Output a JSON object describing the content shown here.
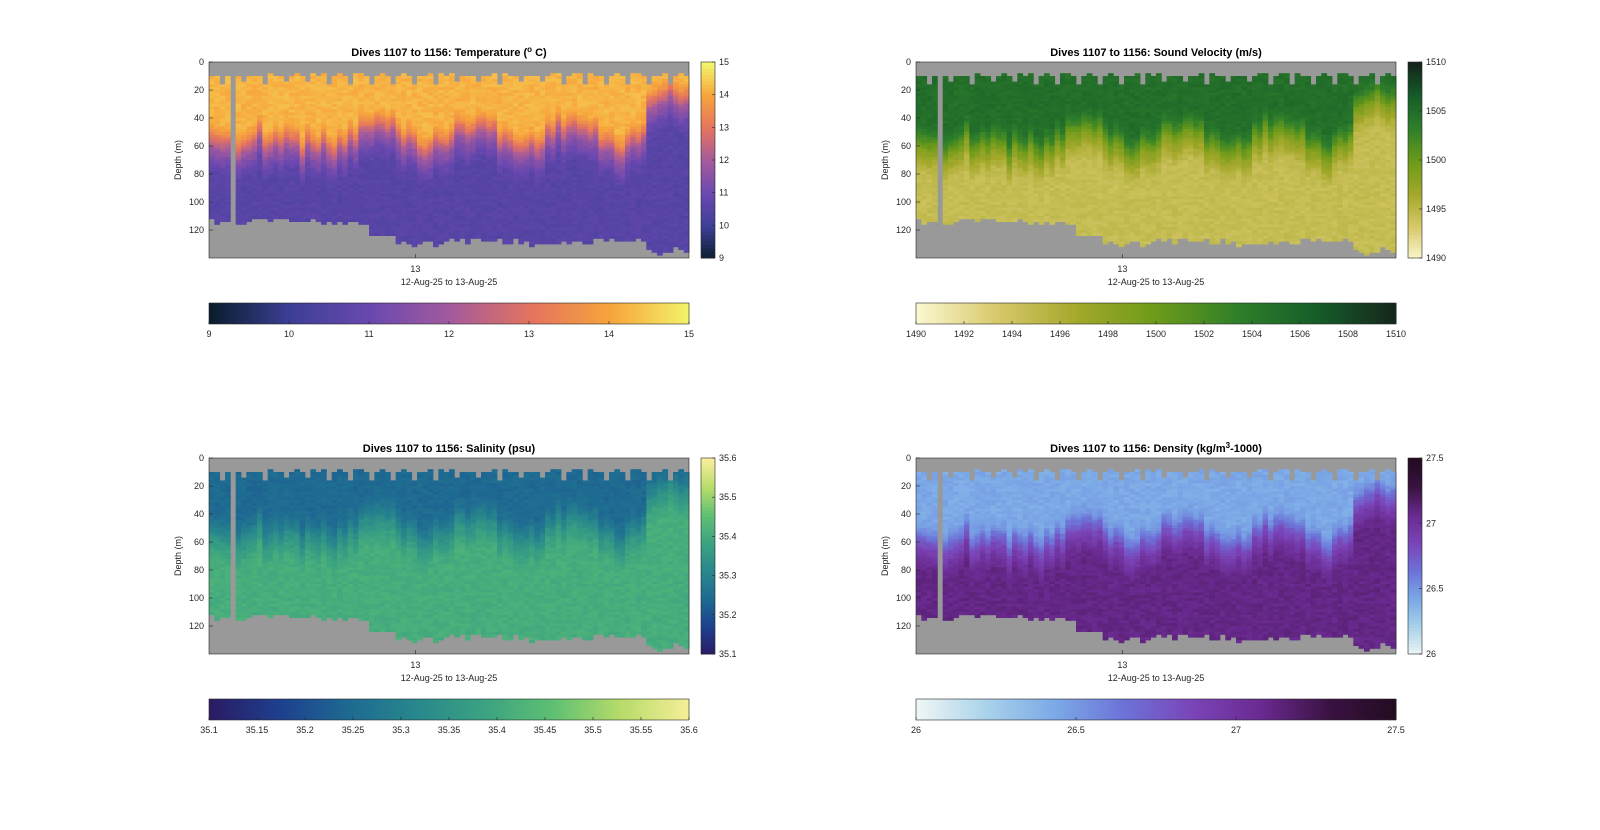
{
  "figure": {
    "background": "#ffffff",
    "missing_color": "#999999"
  },
  "chart_data": [
    {
      "type": "heatmap",
      "title": "Dives 1107 to 1156: Temperature (",
      "title_sup": "o",
      "title_tail": " C)",
      "xlabel": "12-Aug-25 to 13-Aug-25",
      "xtick_labels": [
        "13"
      ],
      "ylabel": "Depth (m)",
      "ylim": [
        0,
        140
      ],
      "yticks": [
        "0",
        "20",
        "40",
        "60",
        "80",
        "100",
        "120"
      ],
      "colorbar_range": [
        9,
        15
      ],
      "colorbar_ticks_side": [
        "9",
        "10",
        "11",
        "12",
        "13",
        "14",
        "15"
      ],
      "colorbar_ticks_bottom": [
        "9",
        "10",
        "11",
        "12",
        "13",
        "14",
        "15"
      ],
      "colormap": [
        "#0a1d2e",
        "#3d3f96",
        "#6a48b0",
        "#a45a9c",
        "#e4735f",
        "#f7a43c",
        "#f3f56a"
      ],
      "surface": 14.1,
      "deep": 10.6,
      "mix_shallow": 12.4,
      "mix_deep": 11.2,
      "thermocline_depth": 62
    },
    {
      "type": "heatmap",
      "title": "Dives 1107 to 1156: Sound Velocity (m/s)",
      "xlabel": "12-Aug-25 to 13-Aug-25",
      "xtick_labels": [
        "13"
      ],
      "ylabel": "Depth (m)",
      "ylim": [
        0,
        140
      ],
      "yticks": [
        "0",
        "20",
        "40",
        "60",
        "80",
        "100",
        "120"
      ],
      "colorbar_range": [
        1490,
        1510
      ],
      "colorbar_ticks_side": [
        "1490",
        "1495",
        "1500",
        "1505",
        "1510"
      ],
      "colorbar_ticks_bottom": [
        "1490",
        "1492",
        "1494",
        "1496",
        "1498",
        "1500",
        "1502",
        "1504",
        "1506",
        "1508",
        "1510"
      ],
      "colormap": [
        "#fbf7cf",
        "#d7c86a",
        "#a3a82a",
        "#6c9a1a",
        "#2f7f2a",
        "#165c29",
        "#14241a"
      ],
      "surface": 1504.5,
      "deep": 1494.5,
      "mix_shallow": 1500.5,
      "mix_deep": 1497.0,
      "thermocline_depth": 62
    },
    {
      "type": "heatmap",
      "title": "Dives 1107 to 1156: Salinity (psu)",
      "xlabel": "12-Aug-25 to 13-Aug-25",
      "xtick_labels": [
        "13"
      ],
      "ylabel": "Depth (m)",
      "ylim": [
        0,
        140
      ],
      "yticks": [
        "0",
        "20",
        "40",
        "60",
        "80",
        "100",
        "120"
      ],
      "colorbar_range": [
        35.1,
        35.6
      ],
      "colorbar_ticks_side": [
        "35.1",
        "35.2",
        "35.3",
        "35.4",
        "35.5",
        "35.6"
      ],
      "colorbar_ticks_bottom": [
        "35.1",
        "35.15",
        "35.2",
        "35.25",
        "35.3",
        "35.35",
        "35.4",
        "35.45",
        "35.5",
        "35.55",
        "35.6"
      ],
      "colormap": [
        "#2a1b63",
        "#1e3f8e",
        "#1e6a92",
        "#28878c",
        "#3ba381",
        "#5fc073",
        "#b8dc6a",
        "#f8ef9a"
      ],
      "surface": 35.25,
      "deep": 35.41,
      "mix_shallow": 35.3,
      "mix_deep": 35.37,
      "thermocline_depth": 55
    },
    {
      "type": "heatmap",
      "title": "Dives 1107 to 1156: Density (kg/m",
      "title_sup": "3",
      "title_tail": "-1000)",
      "xlabel": "12-Aug-25 to 13-Aug-25",
      "xtick_labels": [
        "13"
      ],
      "ylabel": "Depth (m)",
      "ylim": [
        0,
        140
      ],
      "yticks": [
        "0",
        "20",
        "40",
        "60",
        "80",
        "100",
        "120"
      ],
      "colorbar_range": [
        26,
        27.5
      ],
      "colorbar_ticks_side": [
        "26",
        "26.5",
        "27",
        "27.5"
      ],
      "colorbar_ticks_bottom": [
        "26",
        "26.5",
        "27",
        "27.5"
      ],
      "colormap": [
        "#eef6f5",
        "#a9d2ea",
        "#7ba9e6",
        "#6d73d8",
        "#7a44b7",
        "#6a2a90",
        "#3a1241",
        "#230b20"
      ],
      "surface": 26.45,
      "deep": 27.1,
      "mix_shallow": 26.7,
      "mix_deep": 26.95,
      "thermocline_depth": 62
    }
  ]
}
